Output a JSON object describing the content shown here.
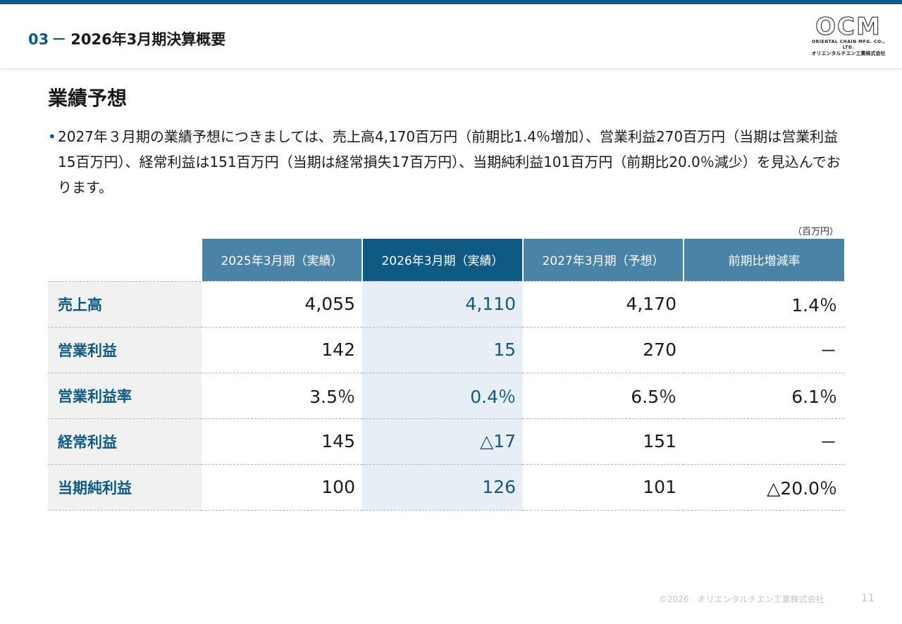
{
  "header": {
    "section_number": "03",
    "section_dash": "－",
    "section_title": "2026年3月期決算概要",
    "logo": {
      "main": "OCM",
      "sub_en": "ORIENTAL CHAIN MFG. CO., LTD.",
      "sub_jp": "オリエンタルチエン工業株式会社"
    }
  },
  "page": {
    "heading": "業績予想",
    "bullet_dot": "•",
    "bullet_text": "2027年３月期の業績予想につきましては、売上高4,170百万円（前期比1.4％増加）、営業利益270百万円（当期は営業利益15百万円）、経常利益は151百万円（当期は経常損失17百万円）、当期純利益101百万円（前期比20.0％減少）を見込んでおります。",
    "unit": "（百万円）"
  },
  "table": {
    "columns": [
      "2025年3月期（実績）",
      "2026年3月期（実績）",
      "2027年3月期（予想）",
      "前期比増減率"
    ],
    "rows": [
      {
        "label": "売上高",
        "values": [
          "4,055",
          "4,110",
          "4,170",
          "1.4％"
        ]
      },
      {
        "label": "営業利益",
        "values": [
          "142",
          "15",
          "270",
          "－"
        ]
      },
      {
        "label": "営業利益率",
        "values": [
          "3.5％",
          "0.4％",
          "6.5％",
          "6.1％"
        ]
      },
      {
        "label": "経常利益",
        "values": [
          "145",
          "△17",
          "151",
          "－"
        ]
      },
      {
        "label": "当期純利益",
        "values": [
          "100",
          "126",
          "101",
          "△20.0％"
        ]
      }
    ]
  },
  "footer": {
    "copyright": "©2026　オリエンタルチエン工業株式会社",
    "page_number": "11"
  },
  "colors": {
    "accent": "#0e5a82",
    "header_cell": "#4a83a6",
    "label_bg": "#f1f1f1",
    "highlight_bg": "#e8eef5"
  }
}
